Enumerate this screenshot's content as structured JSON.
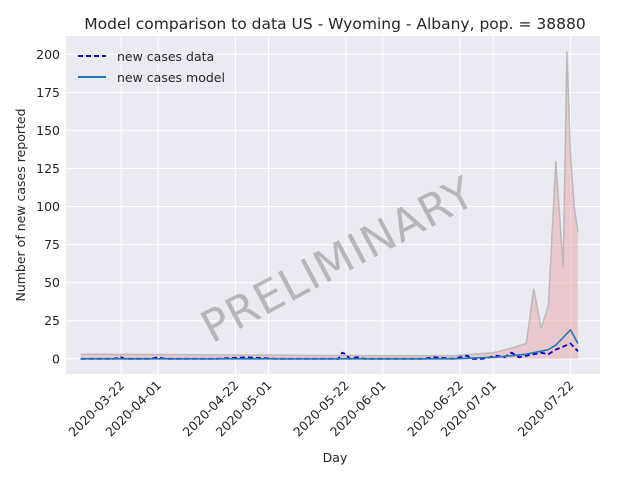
{
  "chart_data": {
    "type": "line",
    "title": "Model comparison to data US - Wyoming - Albany, pop. = 38880",
    "xlabel": "Day",
    "ylabel": "Number of new cases reported",
    "x_range": [
      "2020-03-07",
      "2020-07-30"
    ],
    "ylim": [
      -10,
      212
    ],
    "yticks": [
      0,
      25,
      50,
      75,
      100,
      125,
      150,
      175,
      200
    ],
    "xticks": [
      "2020-03-22",
      "2020-04-01",
      "2020-04-22",
      "2020-05-01",
      "2020-05-22",
      "2020-06-01",
      "2020-06-22",
      "2020-07-01",
      "2020-07-22"
    ],
    "grid": true,
    "legend": {
      "placement": "top-left",
      "entries": [
        {
          "label": "new cases data",
          "style": "dashed",
          "color": "#0000cc"
        },
        {
          "label": "new cases model",
          "style": "solid",
          "color": "#1f77b4"
        }
      ]
    },
    "watermark": "PRELIMINARY",
    "series": [
      {
        "name": "new cases data",
        "x": [
          "2020-03-11",
          "2020-03-15",
          "2020-03-20",
          "2020-03-22",
          "2020-03-23",
          "2020-03-28",
          "2020-03-30",
          "2020-04-01",
          "2020-04-03",
          "2020-04-10",
          "2020-04-12",
          "2020-04-17",
          "2020-04-25",
          "2020-05-03",
          "2020-05-10",
          "2020-05-15",
          "2020-05-18",
          "2020-05-20",
          "2020-05-21",
          "2020-05-22",
          "2020-05-23",
          "2020-05-25",
          "2020-05-27",
          "2020-06-01",
          "2020-06-05",
          "2020-06-12",
          "2020-06-15",
          "2020-06-20",
          "2020-06-24",
          "2020-06-25",
          "2020-06-28",
          "2020-06-30",
          "2020-07-02",
          "2020-07-04",
          "2020-07-06",
          "2020-07-08",
          "2020-07-10",
          "2020-07-12",
          "2020-07-14",
          "2020-07-16",
          "2020-07-18",
          "2020-07-20",
          "2020-07-22",
          "2020-07-24"
        ],
        "y": [
          0,
          0,
          0,
          1,
          0,
          0,
          0,
          1,
          0,
          0,
          0,
          0,
          1,
          0,
          0,
          0,
          0,
          0,
          4,
          3,
          0,
          1,
          0,
          0,
          0,
          0,
          1,
          0,
          2,
          0,
          0,
          1,
          2,
          1,
          4,
          1,
          2,
          3,
          4,
          3,
          6,
          8,
          10,
          5
        ]
      },
      {
        "name": "new cases model",
        "x": [
          "2020-03-11",
          "2020-04-01",
          "2020-05-01",
          "2020-06-01",
          "2020-06-20",
          "2020-07-01",
          "2020-07-06",
          "2020-07-10",
          "2020-07-14",
          "2020-07-16",
          "2020-07-18",
          "2020-07-20",
          "2020-07-22",
          "2020-07-24"
        ],
        "y": [
          0,
          0,
          0,
          0,
          0,
          1,
          2,
          3,
          5,
          6,
          9,
          14,
          19,
          10
        ]
      }
    ],
    "ensemble_envelope": {
      "x": [
        "2020-03-11",
        "2020-06-01",
        "2020-06-20",
        "2020-07-01",
        "2020-07-06",
        "2020-07-10",
        "2020-07-12",
        "2020-07-14",
        "2020-07-16",
        "2020-07-18",
        "2020-07-20",
        "2020-07-21",
        "2020-07-22",
        "2020-07-23",
        "2020-07-24"
      ],
      "upper": [
        3,
        2,
        2,
        4,
        7,
        10,
        46,
        20,
        35,
        130,
        60,
        202,
        134,
        100,
        83
      ],
      "lower": [
        0,
        0,
        0,
        0,
        0,
        0,
        0,
        0,
        0,
        0,
        0,
        0,
        0,
        0,
        0
      ]
    }
  }
}
